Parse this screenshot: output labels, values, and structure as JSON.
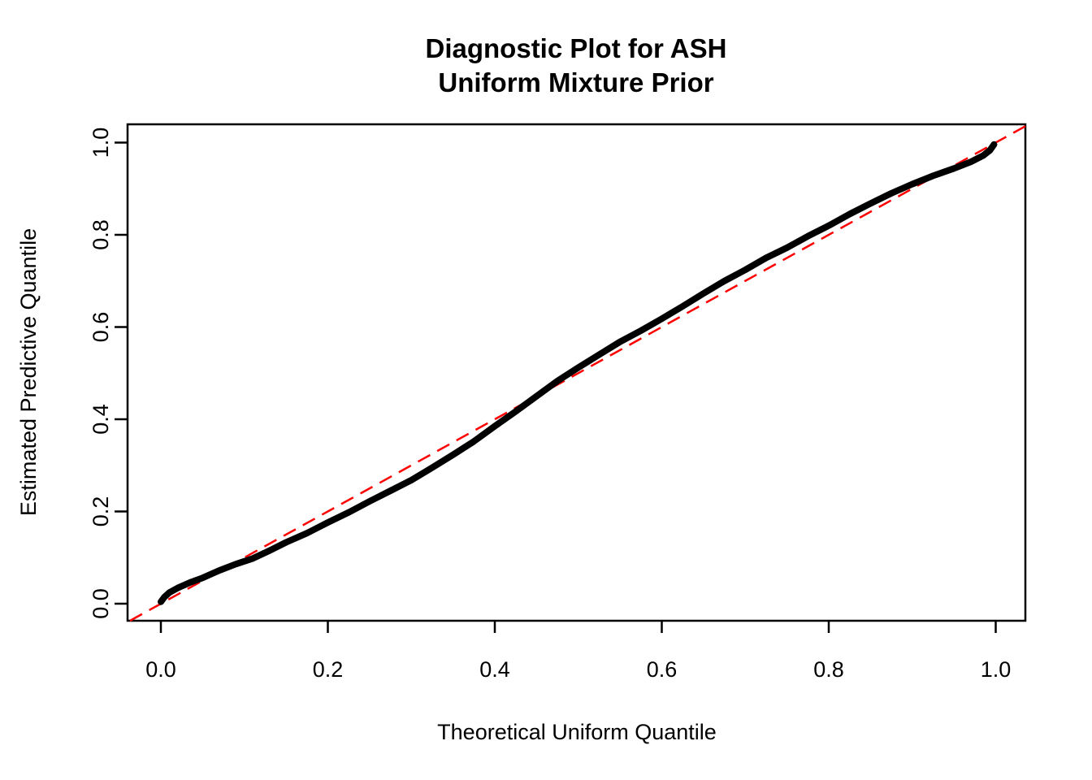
{
  "title": {
    "line1": "Diagnostic Plot for ASH",
    "line2": "Uniform Mixture Prior"
  },
  "axes": {
    "x": {
      "label": "Theoretical Uniform Quantile"
    },
    "y": {
      "label": "Estimated Predictive Quantile"
    }
  },
  "colors": {
    "curve": "#000000",
    "reference": "#FF0000",
    "frame": "#000000",
    "background": "#FFFFFF"
  },
  "chart_data": {
    "type": "scatter",
    "title": "Diagnostic Plot for ASH\nUniform Mixture Prior",
    "xlabel": "Theoretical Uniform Quantile",
    "ylabel": "Estimated Predictive Quantile",
    "xlim": [
      -0.04,
      1.04
    ],
    "ylim": [
      -0.04,
      1.04
    ],
    "grid": false,
    "legend": null,
    "x_ticks": [
      0.0,
      0.2,
      0.4,
      0.6,
      0.8,
      1.0
    ],
    "x_tick_labels": [
      "0.0",
      "0.2",
      "0.4",
      "0.6",
      "0.8",
      "1.0"
    ],
    "y_ticks": [
      0.0,
      0.2,
      0.4,
      0.6,
      0.8,
      1.0
    ],
    "y_tick_labels": [
      "0.0",
      "0.2",
      "0.4",
      "0.6",
      "0.8",
      "1.0"
    ],
    "series": [
      {
        "name": "estimated-predictive-quantiles",
        "color": "#000000",
        "marker": "point-band",
        "points": [
          [
            0.0,
            0.004
          ],
          [
            0.004,
            0.014
          ],
          [
            0.01,
            0.024
          ],
          [
            0.02,
            0.034
          ],
          [
            0.035,
            0.046
          ],
          [
            0.05,
            0.056
          ],
          [
            0.07,
            0.072
          ],
          [
            0.09,
            0.086
          ],
          [
            0.11,
            0.098
          ],
          [
            0.13,
            0.115
          ],
          [
            0.15,
            0.133
          ],
          [
            0.175,
            0.153
          ],
          [
            0.2,
            0.176
          ],
          [
            0.225,
            0.198
          ],
          [
            0.25,
            0.222
          ],
          [
            0.275,
            0.245
          ],
          [
            0.3,
            0.268
          ],
          [
            0.325,
            0.295
          ],
          [
            0.35,
            0.323
          ],
          [
            0.375,
            0.352
          ],
          [
            0.4,
            0.385
          ],
          [
            0.425,
            0.417
          ],
          [
            0.45,
            0.45
          ],
          [
            0.475,
            0.483
          ],
          [
            0.5,
            0.512
          ],
          [
            0.525,
            0.54
          ],
          [
            0.55,
            0.568
          ],
          [
            0.575,
            0.592
          ],
          [
            0.6,
            0.618
          ],
          [
            0.625,
            0.645
          ],
          [
            0.65,
            0.673
          ],
          [
            0.675,
            0.7
          ],
          [
            0.7,
            0.724
          ],
          [
            0.725,
            0.75
          ],
          [
            0.75,
            0.772
          ],
          [
            0.775,
            0.797
          ],
          [
            0.8,
            0.82
          ],
          [
            0.825,
            0.845
          ],
          [
            0.85,
            0.868
          ],
          [
            0.875,
            0.89
          ],
          [
            0.9,
            0.91
          ],
          [
            0.925,
            0.928
          ],
          [
            0.95,
            0.944
          ],
          [
            0.97,
            0.958
          ],
          [
            0.985,
            0.972
          ],
          [
            0.993,
            0.983
          ],
          [
            0.998,
            0.996
          ]
        ]
      },
      {
        "name": "identity-reference-line",
        "color": "#FF0000",
        "style": "dashed",
        "line": {
          "intercept": 0,
          "slope": 1
        }
      }
    ]
  }
}
